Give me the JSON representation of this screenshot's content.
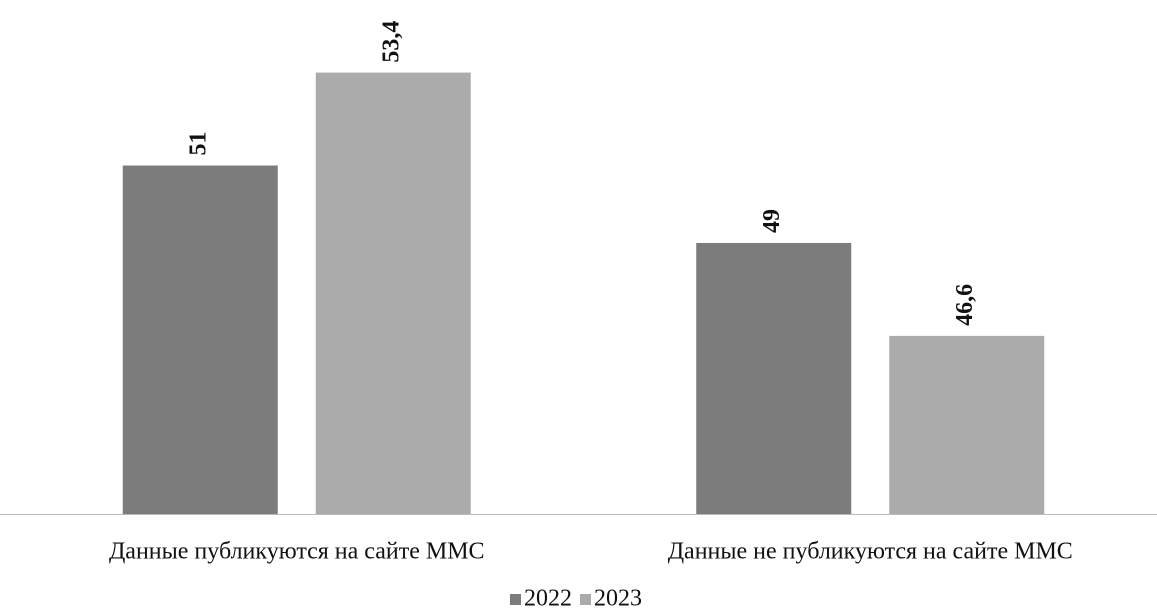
{
  "chart_data": {
    "type": "bar",
    "categories": [
      "Данные публикуются на сайте ММС",
      "Данные не публикуются на сайте ММС"
    ],
    "series": [
      {
        "name": "2022",
        "color": "#7c7c7c",
        "values": [
          51,
          49
        ],
        "value_labels": [
          "51",
          "49"
        ]
      },
      {
        "name": "2023",
        "color": "#ababab",
        "values": [
          53.4,
          46.6
        ],
        "value_labels": [
          "53,4",
          "46,6"
        ]
      }
    ],
    "ylim": [
      42,
      54.5
    ],
    "legend": "bottom"
  }
}
